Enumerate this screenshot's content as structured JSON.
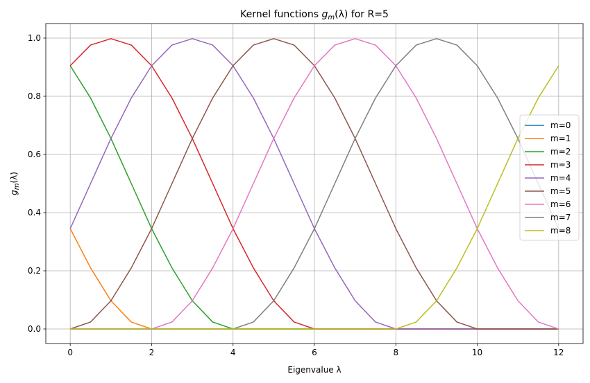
{
  "chart_data": {
    "type": "line",
    "title_prefix": "Kernel functions ",
    "title_math_base": "g",
    "title_math_sub": "m",
    "title_math_arg": "(λ)",
    "title_suffix": " for R=5",
    "xlabel": "Eigenvalue λ",
    "ylabel_base": "g",
    "ylabel_sub": "m",
    "ylabel_arg": "(λ)",
    "xlim": [
      -0.6,
      12.6
    ],
    "ylim": [
      -0.05,
      1.05
    ],
    "xticks": [
      0,
      2,
      4,
      6,
      8,
      10,
      12
    ],
    "xtick_labels": [
      "0",
      "2",
      "4",
      "6",
      "8",
      "10",
      "12"
    ],
    "yticks": [
      0.0,
      0.2,
      0.4,
      0.6,
      0.8,
      1.0
    ],
    "ytick_labels": [
      "0.0",
      "0.2",
      "0.4",
      "0.6",
      "0.8",
      "1.0"
    ],
    "grid": true,
    "legend_position": "center-right",
    "x": [
      0,
      0.5,
      1,
      1.5,
      2,
      2.5,
      3,
      3.5,
      4,
      4.5,
      5,
      5.5,
      6,
      6.5,
      7,
      7.5,
      8,
      8.5,
      9,
      9.5,
      10,
      10.5,
      11,
      11.5,
      12
    ],
    "series": [
      {
        "name": "m=0",
        "color": "#1f77b4",
        "values": [
          0,
          0,
          0,
          0,
          0,
          0,
          0,
          0,
          0,
          0,
          0,
          0,
          0,
          0,
          0,
          0,
          0,
          0,
          0,
          0,
          0,
          0,
          0,
          0,
          0
        ]
      },
      {
        "name": "m=1",
        "color": "#ff7f0e",
        "values": [
          0.345,
          0.21,
          0.097,
          0.024,
          0.0,
          0,
          0,
          0,
          0,
          0,
          0,
          0,
          0,
          0,
          0,
          0,
          0,
          0,
          0,
          0,
          0,
          0,
          0,
          0,
          0
        ]
      },
      {
        "name": "m=2",
        "color": "#2ca02c",
        "values": [
          0.905,
          0.794,
          0.655,
          0.5,
          0.345,
          0.21,
          0.097,
          0.024,
          0.0,
          0,
          0,
          0,
          0,
          0,
          0,
          0,
          0,
          0,
          0,
          0,
          0,
          0,
          0,
          0,
          0
        ]
      },
      {
        "name": "m=3",
        "color": "#d62728",
        "values": [
          0.905,
          0.976,
          0.998,
          0.976,
          0.905,
          0.794,
          0.655,
          0.5,
          0.345,
          0.21,
          0.097,
          0.024,
          0.0,
          0,
          0,
          0,
          0,
          0,
          0,
          0,
          0,
          0,
          0,
          0,
          0
        ]
      },
      {
        "name": "m=4",
        "color": "#9467bd",
        "values": [
          0.345,
          0.5,
          0.655,
          0.794,
          0.905,
          0.976,
          0.998,
          0.976,
          0.905,
          0.794,
          0.655,
          0.5,
          0.345,
          0.21,
          0.097,
          0.024,
          0.0,
          0,
          0,
          0,
          0,
          0,
          0,
          0,
          0
        ]
      },
      {
        "name": "m=5",
        "color": "#8c564b",
        "values": [
          0.0,
          0.024,
          0.097,
          0.21,
          0.345,
          0.5,
          0.655,
          0.794,
          0.905,
          0.976,
          0.998,
          0.976,
          0.905,
          0.794,
          0.655,
          0.5,
          0.345,
          0.21,
          0.097,
          0.024,
          0.0,
          0,
          0,
          0,
          0
        ]
      },
      {
        "name": "m=6",
        "color": "#e377c2",
        "values": [
          0,
          0,
          0,
          0,
          0.0,
          0.024,
          0.097,
          0.21,
          0.345,
          0.5,
          0.655,
          0.794,
          0.905,
          0.976,
          0.998,
          0.976,
          0.905,
          0.794,
          0.655,
          0.5,
          0.345,
          0.21,
          0.097,
          0.024,
          0.0
        ]
      },
      {
        "name": "m=7",
        "color": "#7f7f7f",
        "values": [
          0,
          0,
          0,
          0,
          0,
          0,
          0,
          0,
          0.0,
          0.024,
          0.097,
          0.21,
          0.345,
          0.5,
          0.655,
          0.794,
          0.905,
          0.976,
          0.998,
          0.976,
          0.905,
          0.794,
          0.655,
          0.5,
          0.345
        ]
      },
      {
        "name": "m=8",
        "color": "#bcbd22",
        "values": [
          0,
          0,
          0,
          0,
          0,
          0,
          0,
          0,
          0,
          0,
          0,
          0,
          0,
          0,
          0,
          0,
          0.0,
          0.024,
          0.097,
          0.21,
          0.345,
          0.5,
          0.655,
          0.794,
          0.905
        ]
      }
    ]
  }
}
